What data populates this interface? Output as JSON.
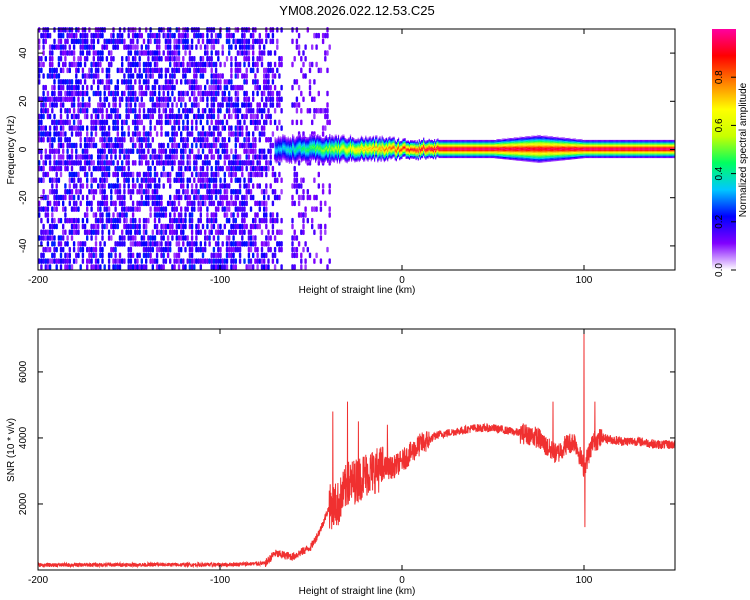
{
  "chart_data": [
    {
      "type": "heatmap",
      "title": "YM08.2026.022.12.53.C25",
      "xlabel": "Height of straight line (km)",
      "ylabel": "Frequency (Hz)",
      "xlim": [
        -200,
        150
      ],
      "ylim": [
        -50,
        50
      ],
      "x_ticks": [
        -200,
        -100,
        0,
        100
      ],
      "x_tick_labels": [
        "-200",
        "-100",
        "0",
        "100"
      ],
      "y_ticks": [
        -40,
        -20,
        0,
        20,
        40
      ],
      "y_tick_labels": [
        "-40",
        "-20",
        "0",
        "20",
        "40"
      ],
      "colorbar": {
        "label": "Normalized spectral amplitude",
        "range": [
          0,
          1
        ],
        "ticks": [
          0,
          0.2,
          0.4,
          0.6,
          0.8
        ],
        "tick_labels": [
          "0.0",
          "0.2",
          "0.4",
          "0.6",
          "0.8"
        ],
        "colors": [
          "#ffffff",
          "#8000ff",
          "#0000ff",
          "#00c8ff",
          "#00ff60",
          "#c8ff00",
          "#ffff00",
          "#ff8000",
          "#ff0000",
          "#ff00a0"
        ]
      },
      "noise_region": {
        "x": [
          -200,
          -40
        ],
        "level": 0.12
      },
      "signal_band": {
        "x": [
          -70,
          150
        ],
        "center_hz": 0,
        "points": [
          {
            "x": -68,
            "amp": 0.35,
            "width": 4
          },
          {
            "x": -55,
            "amp": 0.45,
            "width": 4
          },
          {
            "x": -40,
            "amp": 0.55,
            "width": 4
          },
          {
            "x": -25,
            "amp": 0.7,
            "width": 3
          },
          {
            "x": -10,
            "amp": 0.8,
            "width": 3
          },
          {
            "x": 0,
            "amp": 0.9,
            "width": 2
          },
          {
            "x": 20,
            "amp": 1.0,
            "width": 2
          },
          {
            "x": 50,
            "amp": 1.0,
            "width": 2
          },
          {
            "x": 75,
            "amp": 0.95,
            "width": 4
          },
          {
            "x": 100,
            "amp": 1.0,
            "width": 2
          },
          {
            "x": 150,
            "amp": 1.0,
            "width": 2
          }
        ]
      },
      "grid": false
    },
    {
      "type": "line",
      "xlabel": "Height of straight line (km)",
      "ylabel": "SNR (10 * v/v)",
      "xlim": [
        -200,
        150
      ],
      "ylim": [
        0,
        7300
      ],
      "x_ticks": [
        -200,
        -100,
        0,
        100
      ],
      "x_tick_labels": [
        "-200",
        "-100",
        "0",
        "100"
      ],
      "y_ticks": [
        2000,
        4000,
        6000
      ],
      "y_tick_labels": [
        "2000",
        "4000",
        "6000"
      ],
      "color": "#f03030",
      "x": [
        -200,
        -150,
        -100,
        -75,
        -70,
        -60,
        -50,
        -45,
        -40,
        -35,
        -30,
        -25,
        -20,
        -15,
        -10,
        -5,
        0,
        10,
        20,
        30,
        40,
        50,
        60,
        70,
        75,
        80,
        85,
        90,
        95,
        100,
        105,
        110,
        120,
        130,
        140,
        150
      ],
      "y": [
        150,
        160,
        160,
        200,
        500,
        400,
        700,
        1200,
        1900,
        2000,
        2600,
        2700,
        2900,
        3000,
        3100,
        3100,
        3300,
        3800,
        4100,
        4200,
        4300,
        4300,
        4200,
        4100,
        4000,
        3700,
        3500,
        3800,
        3900,
        3100,
        3900,
        4000,
        3900,
        3900,
        3800,
        3800
      ],
      "spikes": [
        {
          "x": -38,
          "y": 4800
        },
        {
          "x": -30,
          "y": 5100
        },
        {
          "x": -24,
          "y": 4500
        },
        {
          "x": -8,
          "y": 4400
        },
        {
          "x": 83,
          "y": 5100
        },
        {
          "x": 100,
          "y": 7300
        },
        {
          "x": 100.5,
          "y": 1300
        },
        {
          "x": 106,
          "y": 5100
        }
      ],
      "grid": false
    }
  ]
}
